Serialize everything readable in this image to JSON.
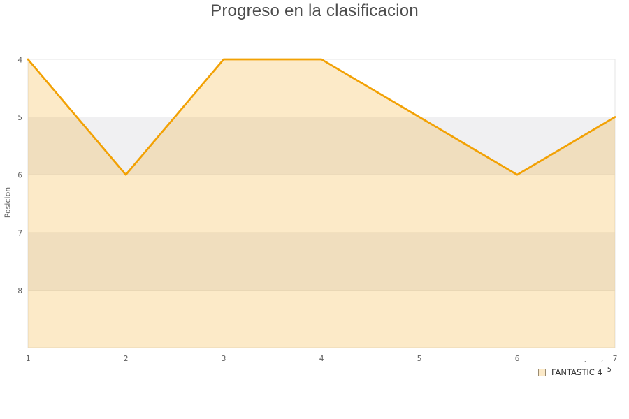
{
  "header": {
    "title": "Progreso en la clasificacion"
  },
  "chart_data": {
    "type": "area",
    "title": "Progreso en la clasificacion",
    "xlabel": "",
    "ylabel": "Posicion",
    "x": [
      1,
      2,
      3,
      4,
      5,
      6,
      7
    ],
    "xticks": [
      "1",
      "2",
      "3",
      "4",
      "5",
      "6",
      "7"
    ],
    "yticks": [
      "4",
      "5",
      "6",
      "7",
      "8"
    ],
    "series": [
      {
        "name": "FANTASTIC 4",
        "values": [
          4,
          6,
          4,
          4,
          5,
          6,
          5
        ]
      }
    ],
    "xlim": [
      1,
      7
    ],
    "ylim_top_to_bottom": [
      4,
      9
    ],
    "y_axis_reversed": true,
    "grid": "horizontal",
    "alternate_band_ranges": [
      [
        5,
        6
      ],
      [
        7,
        8
      ]
    ],
    "legend_position": "bottom-right",
    "colors": {
      "line": "#F2A104",
      "area_fill": "#F2A104",
      "area_opacity": 0.22,
      "band": "#F0F0F2",
      "grid": "#E7E7E7",
      "plot_border": "#E6E6E6",
      "tick_label": "#606060",
      "title": "#4D4D4D"
    }
  },
  "legend": {
    "label": "FANTASTIC 4",
    "superscript": "5",
    "mark_over_s": "˙",
    "mark_after_4": "ˊ",
    "marker_fill": "#FBE9C8",
    "marker_border": "#9A8B71"
  }
}
